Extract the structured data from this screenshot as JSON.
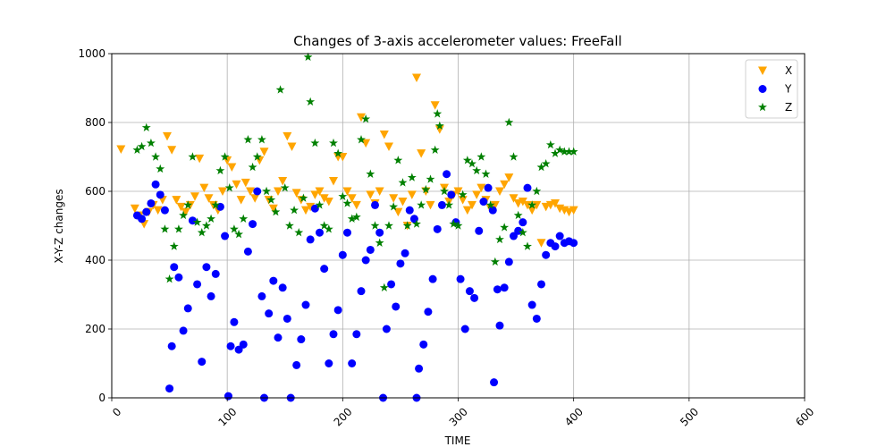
{
  "chart_data": {
    "type": "scatter",
    "title": "Changes of 3-axis accelerometer values: FreeFall",
    "xlabel": "TIME",
    "ylabel": "X-Y-Z changes",
    "xlim": [
      0,
      600
    ],
    "ylim": [
      0,
      1000
    ],
    "xticks": [
      "0",
      "100",
      "200",
      "300",
      "400",
      "500",
      "600"
    ],
    "yticks": [
      "0",
      "200",
      "400",
      "600",
      "800",
      "1000"
    ],
    "grid": true,
    "legend_position": "top-right",
    "series": [
      {
        "name": "X",
        "marker": "triangle-down",
        "color": "#ffa500",
        "points": [
          [
            8,
            722
          ],
          [
            20,
            550
          ],
          [
            24,
            530
          ],
          [
            28,
            505
          ],
          [
            32,
            540
          ],
          [
            36,
            560
          ],
          [
            40,
            545
          ],
          [
            44,
            575
          ],
          [
            48,
            760
          ],
          [
            52,
            720
          ],
          [
            56,
            575
          ],
          [
            60,
            555
          ],
          [
            64,
            540
          ],
          [
            68,
            560
          ],
          [
            72,
            585
          ],
          [
            76,
            695
          ],
          [
            80,
            610
          ],
          [
            84,
            580
          ],
          [
            88,
            560
          ],
          [
            92,
            545
          ],
          [
            96,
            600
          ],
          [
            100,
            690
          ],
          [
            104,
            670
          ],
          [
            108,
            620
          ],
          [
            112,
            575
          ],
          [
            116,
            625
          ],
          [
            120,
            600
          ],
          [
            124,
            580
          ],
          [
            128,
            690
          ],
          [
            132,
            715
          ],
          [
            136,
            575
          ],
          [
            140,
            550
          ],
          [
            144,
            600
          ],
          [
            148,
            630
          ],
          [
            152,
            760
          ],
          [
            156,
            730
          ],
          [
            160,
            595
          ],
          [
            164,
            575
          ],
          [
            168,
            545
          ],
          [
            172,
            555
          ],
          [
            176,
            590
          ],
          [
            180,
            600
          ],
          [
            184,
            580
          ],
          [
            188,
            570
          ],
          [
            192,
            630
          ],
          [
            196,
            700
          ],
          [
            200,
            700
          ],
          [
            204,
            600
          ],
          [
            208,
            580
          ],
          [
            212,
            560
          ],
          [
            216,
            815
          ],
          [
            220,
            740
          ],
          [
            224,
            590
          ],
          [
            228,
            565
          ],
          [
            232,
            600
          ],
          [
            236,
            765
          ],
          [
            240,
            730
          ],
          [
            244,
            580
          ],
          [
            248,
            540
          ],
          [
            252,
            570
          ],
          [
            256,
            500
          ],
          [
            260,
            590
          ],
          [
            264,
            930
          ],
          [
            268,
            710
          ],
          [
            272,
            600
          ],
          [
            276,
            560
          ],
          [
            280,
            850
          ],
          [
            284,
            780
          ],
          [
            288,
            610
          ],
          [
            292,
            570
          ],
          [
            296,
            590
          ],
          [
            300,
            600
          ],
          [
            304,
            575
          ],
          [
            308,
            545
          ],
          [
            312,
            560
          ],
          [
            316,
            590
          ],
          [
            320,
            610
          ],
          [
            324,
            575
          ],
          [
            328,
            550
          ],
          [
            332,
            560
          ],
          [
            336,
            600
          ],
          [
            340,
            620
          ],
          [
            344,
            640
          ],
          [
            348,
            580
          ],
          [
            352,
            565
          ],
          [
            356,
            570
          ],
          [
            360,
            560
          ],
          [
            364,
            545
          ],
          [
            368,
            560
          ],
          [
            372,
            450
          ],
          [
            376,
            555
          ],
          [
            380,
            560
          ],
          [
            384,
            565
          ],
          [
            388,
            550
          ],
          [
            392,
            545
          ],
          [
            396,
            540
          ],
          [
            400,
            545
          ]
        ]
      },
      {
        "name": "Y",
        "marker": "circle",
        "color": "#0000ff",
        "points": [
          [
            22,
            530
          ],
          [
            26,
            520
          ],
          [
            30,
            540
          ],
          [
            34,
            565
          ],
          [
            38,
            620
          ],
          [
            42,
            590
          ],
          [
            46,
            545
          ],
          [
            50,
            27
          ],
          [
            52,
            150
          ],
          [
            54,
            380
          ],
          [
            58,
            350
          ],
          [
            62,
            195
          ],
          [
            66,
            260
          ],
          [
            70,
            515
          ],
          [
            74,
            330
          ],
          [
            78,
            105
          ],
          [
            82,
            380
          ],
          [
            86,
            295
          ],
          [
            90,
            360
          ],
          [
            94,
            555
          ],
          [
            98,
            470
          ],
          [
            101,
            5
          ],
          [
            103,
            150
          ],
          [
            106,
            220
          ],
          [
            110,
            140
          ],
          [
            114,
            155
          ],
          [
            118,
            425
          ],
          [
            122,
            505
          ],
          [
            126,
            600
          ],
          [
            130,
            295
          ],
          [
            132,
            0
          ],
          [
            136,
            245
          ],
          [
            140,
            340
          ],
          [
            144,
            175
          ],
          [
            148,
            320
          ],
          [
            152,
            230
          ],
          [
            155,
            0
          ],
          [
            160,
            95
          ],
          [
            164,
            170
          ],
          [
            168,
            270
          ],
          [
            172,
            460
          ],
          [
            176,
            550
          ],
          [
            180,
            480
          ],
          [
            184,
            375
          ],
          [
            188,
            100
          ],
          [
            192,
            185
          ],
          [
            196,
            255
          ],
          [
            200,
            415
          ],
          [
            204,
            480
          ],
          [
            208,
            100
          ],
          [
            212,
            185
          ],
          [
            216,
            310
          ],
          [
            220,
            400
          ],
          [
            224,
            430
          ],
          [
            228,
            560
          ],
          [
            232,
            480
          ],
          [
            235,
            0
          ],
          [
            238,
            200
          ],
          [
            242,
            330
          ],
          [
            246,
            265
          ],
          [
            250,
            390
          ],
          [
            254,
            420
          ],
          [
            258,
            545
          ],
          [
            262,
            520
          ],
          [
            264,
            0
          ],
          [
            266,
            85
          ],
          [
            270,
            155
          ],
          [
            274,
            250
          ],
          [
            278,
            345
          ],
          [
            282,
            490
          ],
          [
            286,
            560
          ],
          [
            290,
            650
          ],
          [
            294,
            590
          ],
          [
            298,
            510
          ],
          [
            302,
            345
          ],
          [
            306,
            200
          ],
          [
            310,
            310
          ],
          [
            314,
            290
          ],
          [
            318,
            485
          ],
          [
            322,
            570
          ],
          [
            326,
            610
          ],
          [
            330,
            545
          ],
          [
            331,
            45
          ],
          [
            334,
            315
          ],
          [
            336,
            210
          ],
          [
            340,
            320
          ],
          [
            344,
            395
          ],
          [
            348,
            470
          ],
          [
            352,
            485
          ],
          [
            356,
            510
          ],
          [
            360,
            610
          ],
          [
            364,
            270
          ],
          [
            368,
            230
          ],
          [
            372,
            330
          ],
          [
            376,
            415
          ],
          [
            380,
            450
          ],
          [
            384,
            440
          ],
          [
            388,
            470
          ],
          [
            392,
            450
          ],
          [
            396,
            455
          ],
          [
            400,
            450
          ]
        ]
      },
      {
        "name": "Z",
        "marker": "star",
        "color": "#008000",
        "points": [
          [
            22,
            720
          ],
          [
            26,
            730
          ],
          [
            30,
            785
          ],
          [
            34,
            740
          ],
          [
            38,
            700
          ],
          [
            42,
            665
          ],
          [
            46,
            490
          ],
          [
            50,
            345
          ],
          [
            54,
            440
          ],
          [
            58,
            490
          ],
          [
            62,
            530
          ],
          [
            66,
            560
          ],
          [
            70,
            700
          ],
          [
            74,
            510
          ],
          [
            78,
            480
          ],
          [
            82,
            500
          ],
          [
            86,
            520
          ],
          [
            90,
            560
          ],
          [
            94,
            660
          ],
          [
            98,
            700
          ],
          [
            102,
            610
          ],
          [
            106,
            490
          ],
          [
            110,
            475
          ],
          [
            114,
            520
          ],
          [
            118,
            750
          ],
          [
            122,
            670
          ],
          [
            126,
            700
          ],
          [
            130,
            750
          ],
          [
            134,
            600
          ],
          [
            138,
            575
          ],
          [
            142,
            540
          ],
          [
            146,
            895
          ],
          [
            150,
            610
          ],
          [
            154,
            500
          ],
          [
            158,
            545
          ],
          [
            162,
            480
          ],
          [
            166,
            580
          ],
          [
            170,
            990
          ],
          [
            172,
            860
          ],
          [
            176,
            740
          ],
          [
            180,
            560
          ],
          [
            184,
            500
          ],
          [
            188,
            490
          ],
          [
            192,
            740
          ],
          [
            196,
            710
          ],
          [
            200,
            585
          ],
          [
            204,
            565
          ],
          [
            208,
            520
          ],
          [
            212,
            525
          ],
          [
            216,
            750
          ],
          [
            220,
            810
          ],
          [
            224,
            650
          ],
          [
            228,
            500
          ],
          [
            232,
            450
          ],
          [
            236,
            320
          ],
          [
            240,
            500
          ],
          [
            244,
            555
          ],
          [
            248,
            690
          ],
          [
            252,
            625
          ],
          [
            256,
            500
          ],
          [
            260,
            640
          ],
          [
            264,
            505
          ],
          [
            268,
            560
          ],
          [
            272,
            605
          ],
          [
            276,
            635
          ],
          [
            280,
            720
          ],
          [
            282,
            825
          ],
          [
            284,
            790
          ],
          [
            288,
            600
          ],
          [
            292,
            560
          ],
          [
            296,
            505
          ],
          [
            300,
            500
          ],
          [
            304,
            590
          ],
          [
            308,
            690
          ],
          [
            312,
            680
          ],
          [
            316,
            660
          ],
          [
            320,
            700
          ],
          [
            324,
            650
          ],
          [
            328,
            560
          ],
          [
            332,
            395
          ],
          [
            336,
            460
          ],
          [
            340,
            495
          ],
          [
            344,
            800
          ],
          [
            348,
            700
          ],
          [
            352,
            530
          ],
          [
            356,
            480
          ],
          [
            360,
            440
          ],
          [
            364,
            560
          ],
          [
            368,
            600
          ],
          [
            372,
            670
          ],
          [
            376,
            680
          ],
          [
            380,
            735
          ],
          [
            384,
            710
          ],
          [
            388,
            720
          ],
          [
            392,
            715
          ],
          [
            396,
            715
          ],
          [
            400,
            715
          ]
        ]
      }
    ]
  }
}
